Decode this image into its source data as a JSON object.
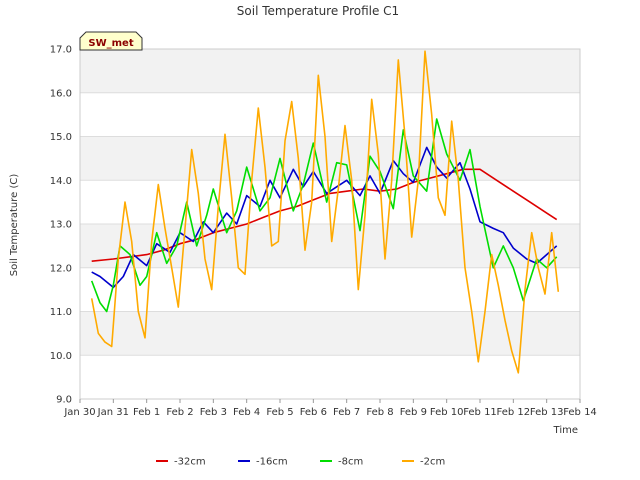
{
  "chart_data": {
    "type": "line",
    "title": "Soil Temperature Profile C1",
    "xlabel": "Time",
    "ylabel": "Soil Temperature (C)",
    "badge": "SW_met",
    "xlim": [
      0,
      15
    ],
    "ylim": [
      9.0,
      17.0
    ],
    "x_tick_values": [
      0,
      1,
      2,
      3,
      4,
      5,
      6,
      7,
      8,
      9,
      10,
      11,
      12,
      13,
      14,
      15
    ],
    "x_tick_labels": [
      "Jan 30",
      "Jan 31",
      "Feb 1",
      "Feb 2",
      "Feb 3",
      "Feb 4",
      "Feb 5",
      "Feb 6",
      "Feb 7",
      "Feb 8",
      "Feb 9",
      "Feb 10",
      "Feb 11",
      "Feb 12",
      "Feb 13",
      "Feb 14"
    ],
    "y_tick_values": [
      9.0,
      10.0,
      11.0,
      12.0,
      13.0,
      14.0,
      15.0,
      16.0,
      17.0
    ],
    "y_tick_labels": [
      "9.0",
      "10.0",
      "11.0",
      "12.0",
      "13.0",
      "14.0",
      "15.0",
      "16.0",
      "17.0"
    ],
    "grid": true,
    "legend_position": "bottom",
    "series": [
      {
        "name": "-32cm",
        "color": "#dd0000",
        "x": [
          0.35,
          1.0,
          1.5,
          2.0,
          2.5,
          3.0,
          3.5,
          4.0,
          4.5,
          5.0,
          5.5,
          6.0,
          6.5,
          7.0,
          7.5,
          8.0,
          8.5,
          9.0,
          9.5,
          10.0,
          10.5,
          11.0,
          11.5,
          12.0,
          12.5,
          13.0,
          13.5,
          14.0,
          14.3
        ],
        "y": [
          12.15,
          12.2,
          12.25,
          12.3,
          12.4,
          12.55,
          12.65,
          12.8,
          12.9,
          13.0,
          13.15,
          13.3,
          13.4,
          13.55,
          13.7,
          13.75,
          13.8,
          13.75,
          13.8,
          13.95,
          14.05,
          14.15,
          14.25,
          14.25,
          14.0,
          13.75,
          13.5,
          13.25,
          13.1
        ]
      },
      {
        "name": "-16cm",
        "color": "#0000cc",
        "x": [
          0.35,
          0.6,
          1.0,
          1.3,
          1.6,
          2.0,
          2.3,
          2.7,
          3.0,
          3.4,
          3.7,
          4.0,
          4.4,
          4.7,
          5.0,
          5.4,
          5.7,
          6.0,
          6.4,
          6.7,
          7.0,
          7.4,
          7.7,
          8.0,
          8.4,
          8.7,
          9.0,
          9.4,
          9.7,
          10.0,
          10.4,
          10.7,
          11.0,
          11.4,
          11.7,
          12.0,
          12.4,
          12.7,
          13.0,
          13.4,
          13.7,
          14.0,
          14.3
        ],
        "y": [
          11.9,
          11.8,
          11.55,
          11.8,
          12.3,
          12.05,
          12.55,
          12.35,
          12.8,
          12.6,
          13.05,
          12.8,
          13.25,
          13.0,
          13.65,
          13.4,
          14.0,
          13.6,
          14.25,
          13.85,
          14.2,
          13.7,
          13.85,
          14.0,
          13.65,
          14.1,
          13.7,
          14.45,
          14.15,
          13.95,
          14.75,
          14.3,
          14.05,
          14.4,
          13.8,
          13.05,
          12.9,
          12.8,
          12.45,
          12.2,
          12.1,
          12.3,
          12.5
        ]
      },
      {
        "name": "-8cm",
        "color": "#00dd00",
        "x": [
          0.35,
          0.6,
          0.8,
          1.0,
          1.2,
          1.5,
          1.8,
          2.0,
          2.3,
          2.6,
          2.9,
          3.2,
          3.5,
          3.8,
          4.0,
          4.4,
          4.7,
          5.0,
          5.4,
          5.7,
          6.0,
          6.4,
          6.7,
          7.0,
          7.4,
          7.7,
          8.0,
          8.4,
          8.7,
          9.0,
          9.4,
          9.7,
          10.0,
          10.4,
          10.7,
          11.0,
          11.4,
          11.7,
          12.0,
          12.4,
          12.7,
          13.0,
          13.3,
          13.7,
          14.0,
          14.3
        ],
        "y": [
          11.7,
          11.2,
          11.0,
          11.6,
          12.5,
          12.3,
          11.6,
          11.8,
          12.8,
          12.1,
          12.5,
          13.5,
          12.5,
          13.2,
          13.8,
          12.8,
          13.3,
          14.3,
          13.3,
          13.6,
          14.5,
          13.3,
          13.9,
          14.85,
          13.5,
          14.4,
          14.35,
          12.85,
          14.55,
          14.2,
          13.35,
          15.15,
          14.1,
          13.75,
          15.4,
          14.6,
          14.0,
          14.7,
          13.4,
          12.0,
          12.5,
          12.0,
          11.25,
          12.2,
          12.0,
          12.25
        ]
      },
      {
        "name": "-2cm",
        "color": "#ffaa00",
        "x": [
          0.35,
          0.55,
          0.75,
          0.95,
          1.15,
          1.35,
          1.55,
          1.75,
          1.95,
          2.15,
          2.35,
          2.55,
          2.75,
          2.95,
          3.15,
          3.35,
          3.55,
          3.75,
          3.95,
          4.15,
          4.35,
          4.55,
          4.75,
          4.95,
          5.15,
          5.35,
          5.55,
          5.75,
          5.95,
          6.15,
          6.35,
          6.55,
          6.75,
          6.95,
          7.15,
          7.35,
          7.55,
          7.75,
          7.95,
          8.15,
          8.35,
          8.55,
          8.75,
          8.95,
          9.15,
          9.35,
          9.55,
          9.75,
          9.95,
          10.15,
          10.35,
          10.55,
          10.75,
          10.95,
          11.15,
          11.35,
          11.55,
          11.75,
          11.95,
          12.15,
          12.35,
          12.55,
          12.75,
          12.95,
          13.15,
          13.35,
          13.55,
          13.75,
          13.95,
          14.15,
          14.35
        ],
        "y": [
          11.3,
          10.5,
          10.3,
          10.2,
          12.2,
          13.5,
          12.6,
          11.0,
          10.4,
          12.6,
          13.9,
          12.9,
          12.0,
          11.1,
          12.9,
          14.7,
          13.7,
          12.2,
          11.5,
          13.4,
          15.05,
          13.6,
          12.0,
          11.85,
          14.0,
          15.65,
          14.3,
          12.5,
          12.6,
          14.9,
          15.8,
          14.5,
          12.4,
          13.5,
          16.4,
          15.0,
          12.6,
          13.8,
          15.25,
          14.0,
          11.5,
          13.2,
          15.85,
          14.6,
          12.2,
          14.0,
          16.75,
          15.0,
          12.7,
          14.0,
          16.95,
          15.5,
          13.6,
          13.2,
          15.35,
          14.0,
          12.0,
          11.0,
          9.85,
          11.0,
          12.3,
          11.6,
          10.8,
          10.1,
          9.6,
          11.5,
          12.8,
          12.0,
          11.4,
          12.8,
          11.45
        ]
      }
    ]
  }
}
